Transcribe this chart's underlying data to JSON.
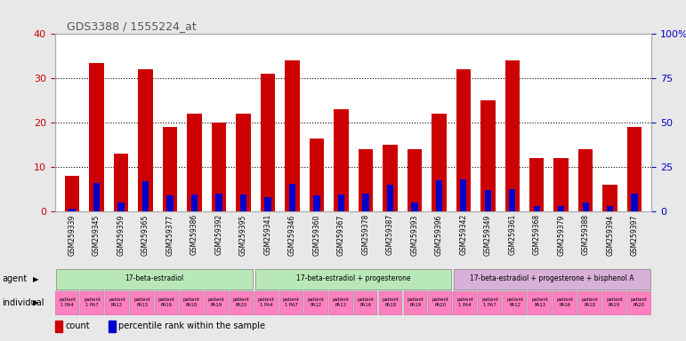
{
  "title": "GDS3388 / 1555224_at",
  "gsm_ids": [
    "GSM259339",
    "GSM259345",
    "GSM259359",
    "GSM259365",
    "GSM259377",
    "GSM259386",
    "GSM259392",
    "GSM259395",
    "GSM259341",
    "GSM259346",
    "GSM259360",
    "GSM259367",
    "GSM259378",
    "GSM259387",
    "GSM259393",
    "GSM259396",
    "GSM259342",
    "GSM259349",
    "GSM259361",
    "GSM259368",
    "GSM259379",
    "GSM259388",
    "GSM259394",
    "GSM259397"
  ],
  "counts": [
    8,
    33.5,
    13,
    32,
    19,
    22,
    20,
    22,
    31,
    34,
    16.5,
    23,
    14,
    15,
    14,
    22,
    32,
    25,
    34,
    12,
    12,
    14,
    6,
    19
  ],
  "percentiles": [
    1.5,
    16,
    5,
    17,
    9,
    9.5,
    10,
    9.5,
    8,
    15.5,
    9,
    9.5,
    10,
    15,
    5,
    17.5,
    18,
    12,
    12.5,
    3,
    3,
    5,
    3,
    10
  ],
  "agents": [
    "17-beta-estradiol",
    "17-beta-estradiol + progesterone",
    "17-beta-estradiol + progesterone + bisphenol A"
  ],
  "agent_spans": [
    8,
    8,
    8
  ],
  "agent_colors": [
    "#b8e8b8",
    "#b8e8b8",
    "#d8b0d8"
  ],
  "individuals": [
    "patient\n1 PA4",
    "patient\n1 PA7",
    "patient\nPA12",
    "patient\nPA13",
    "patient\nPA16",
    "patient\nPA18",
    "patient\nPA19",
    "patient\nPA20",
    "patient\n1 PA4",
    "patient\n1 PA7",
    "patient\nPA12",
    "patient\nPA13",
    "patient\nPA16",
    "patient\nPA18",
    "patient\nPA19",
    "patient\nPA20",
    "patient\n1 PA4",
    "patient\n1 PA7",
    "patient\nPA12",
    "patient\nPA13",
    "patient\nPA16",
    "patient\nPA18",
    "patient\nPA19",
    "patient\nPA20"
  ],
  "bar_color": "#cc0000",
  "percentile_color": "#0000cc",
  "ylim_left": [
    0,
    40
  ],
  "ylim_right": [
    0,
    100
  ],
  "yticks_left": [
    0,
    10,
    20,
    30,
    40
  ],
  "yticks_right": [
    0,
    25,
    50,
    75,
    100
  ],
  "right_tick_labels": [
    "0",
    "25",
    "50",
    "75",
    "100%"
  ],
  "background_color": "#e8e8e8",
  "plot_bg": "#ffffff",
  "title_color": "#555555",
  "individual_row_color": "#ff80c0",
  "grid_vals": [
    10,
    20,
    30
  ]
}
